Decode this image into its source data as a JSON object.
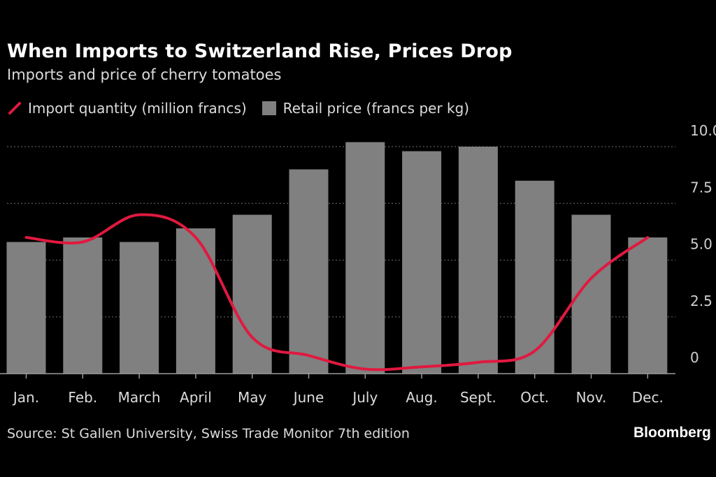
{
  "header": {
    "title": "When Imports to Switzerland Rise, Prices Drop",
    "subtitle": "Imports and price of cherry tomatoes"
  },
  "legend": {
    "line_label": "Import quantity (million francs)",
    "bar_label": "Retail price (francs per kg)"
  },
  "footer": {
    "source": "Source: St Gallen University, Swiss Trade Monitor 7th edition",
    "logo": "Bloomberg"
  },
  "colors": {
    "background": "#000000",
    "bar": "#808080",
    "line": "#e0193f",
    "grid": "#5a5a5a",
    "text": "#dcdcdc"
  },
  "chart_data": {
    "type": "bar",
    "title": "When Imports to Switzerland Rise, Prices Drop",
    "subtitle": "Imports and price of cherry tomatoes",
    "categories": [
      "Jan.",
      "Feb.",
      "March",
      "April",
      "May",
      "June",
      "July",
      "Aug.",
      "Sept.",
      "Oct.",
      "Nov.",
      "Dec."
    ],
    "series": [
      {
        "name": "Retail price (francs per kg)",
        "type": "bar",
        "values": [
          5.8,
          6.0,
          5.8,
          6.4,
          7.0,
          9.0,
          10.2,
          9.8,
          10.0,
          8.5,
          7.0,
          6.0
        ]
      },
      {
        "name": "Import quantity (million francs)",
        "type": "line",
        "values": [
          6.0,
          5.8,
          7.0,
          6.0,
          1.6,
          0.8,
          0.2,
          0.3,
          0.5,
          1.0,
          4.2,
          6.0
        ]
      }
    ],
    "y_axis": {
      "position": "right",
      "range": [
        0,
        10
      ],
      "ticks": [
        0,
        2.5,
        5.0,
        7.5,
        10.0
      ],
      "tick_labels": [
        "0",
        "2.5",
        "5.0",
        "7.5",
        "10.0"
      ]
    },
    "grid": true,
    "legend_position": "top-left"
  }
}
